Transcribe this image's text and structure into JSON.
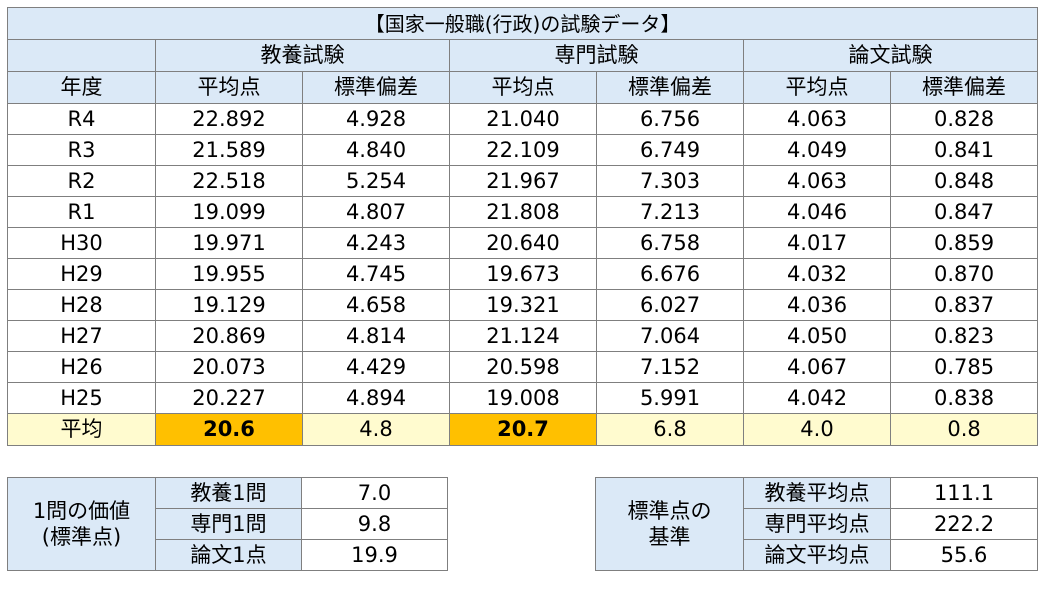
{
  "title": "【国家一般職(行政)の試験データ】",
  "groups": [
    "教養試験",
    "専門試験",
    "論文試験"
  ],
  "col_year": "年度",
  "sub_headers": [
    "平均点",
    "標準偏差",
    "平均点",
    "標準偏差",
    "平均点",
    "標準偏差"
  ],
  "rows": [
    {
      "year": "R4",
      "v": [
        "22.892",
        "4.928",
        "21.040",
        "6.756",
        "4.063",
        "0.828"
      ]
    },
    {
      "year": "R3",
      "v": [
        "21.589",
        "4.840",
        "22.109",
        "6.749",
        "4.049",
        "0.841"
      ]
    },
    {
      "year": "R2",
      "v": [
        "22.518",
        "5.254",
        "21.967",
        "7.303",
        "4.063",
        "0.848"
      ]
    },
    {
      "year": "R1",
      "v": [
        "19.099",
        "4.807",
        "21.808",
        "7.213",
        "4.046",
        "0.847"
      ]
    },
    {
      "year": "H30",
      "v": [
        "19.971",
        "4.243",
        "20.640",
        "6.758",
        "4.017",
        "0.859"
      ]
    },
    {
      "year": "H29",
      "v": [
        "19.955",
        "4.745",
        "19.673",
        "6.676",
        "4.032",
        "0.870"
      ]
    },
    {
      "year": "H28",
      "v": [
        "19.129",
        "4.658",
        "19.321",
        "6.027",
        "4.036",
        "0.837"
      ]
    },
    {
      "year": "H27",
      "v": [
        "20.869",
        "4.814",
        "21.124",
        "7.064",
        "4.050",
        "0.823"
      ]
    },
    {
      "year": "H26",
      "v": [
        "20.073",
        "4.429",
        "20.598",
        "7.152",
        "4.067",
        "0.785"
      ]
    },
    {
      "year": "H25",
      "v": [
        "20.227",
        "4.894",
        "19.008",
        "5.991",
        "4.042",
        "0.838"
      ]
    }
  ],
  "average": {
    "label": "平均",
    "v": [
      "20.6",
      "4.8",
      "20.7",
      "6.8",
      "4.0",
      "0.8"
    ]
  },
  "value_table": {
    "label_line1": "1問の価値",
    "label_line2": "(標準点)",
    "rows": [
      {
        "label": "教養1問",
        "value": "7.0"
      },
      {
        "label": "専門1問",
        "value": "9.8"
      },
      {
        "label": "論文1点",
        "value": "19.9"
      }
    ]
  },
  "standard_table": {
    "label_line1": "標準点の",
    "label_line2": "基準",
    "rows": [
      {
        "label": "教養平均点",
        "value": "111.1"
      },
      {
        "label": "専門平均点",
        "value": "222.2"
      },
      {
        "label": "論文平均点",
        "value": "55.6"
      }
    ]
  },
  "colors": {
    "header_bg": "#dbe9f7",
    "average_bg": "#fffbcf",
    "highlight_bg": "#ffc000",
    "border": "#7f7f7f"
  }
}
